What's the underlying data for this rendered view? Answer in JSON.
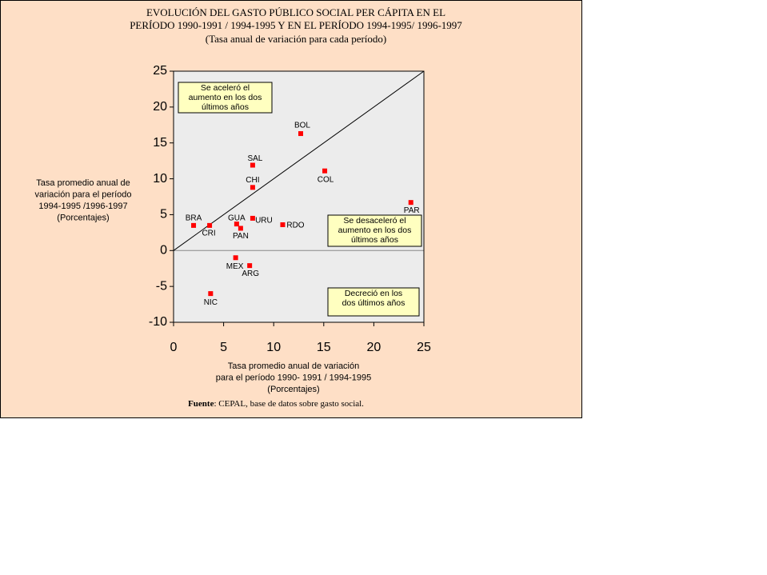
{
  "chart_data": {
    "type": "scatter",
    "title": [
      "EVOLUCIÓN DEL GASTO PÚBLICO SOCIAL PER CÁPITA EN EL",
      "PERÍODO 1990-1991 / 1994-1995 Y EN EL PERÍODO 1994-1995/ 1996-1997"
    ],
    "subtitle": "(Tasa anual de variación para cada período)",
    "x_label": [
      "Tasa promedio anual de variación",
      "para el período 1990- 1991 / 1994-1995",
      "(Porcentajes)"
    ],
    "y_label": [
      "Tasa promedio anual de",
      "variación para el período",
      "1994-1995 /1996-1997",
      "(Porcentajes)"
    ],
    "source_label": "Fuente",
    "source_text": ": CEPAL, base de datos sobre gasto social.",
    "labels": [
      "BOL",
      "SAL",
      "CHI",
      "COL",
      "PAR",
      "BRA",
      "CRI",
      "GUA",
      "PAN",
      "URU",
      "RDO",
      "MEX",
      "ARG",
      "NIC"
    ],
    "x": [
      12.7,
      7.9,
      7.9,
      15.1,
      23.7,
      2.0,
      3.6,
      6.3,
      6.7,
      7.9,
      10.9,
      6.2,
      7.6,
      3.7
    ],
    "values": [
      16.3,
      11.9,
      8.8,
      11.1,
      6.7,
      3.5,
      3.5,
      3.7,
      3.1,
      4.5,
      3.6,
      -1.0,
      -2.1,
      -6.0
    ],
    "color": "#ff0000",
    "xlim": [
      0,
      25
    ],
    "xticks": [
      0,
      5,
      10,
      15,
      20,
      25
    ],
    "ylim": [
      -10,
      25
    ],
    "yticks": [
      -10,
      -5,
      0,
      5,
      10,
      15,
      20,
      25
    ],
    "annotations": [
      [
        "Se aceleró el",
        "aumento en los dos",
        "últimos años"
      ],
      [
        "Se desaceleró el",
        "aumento en los dos",
        "últimos años"
      ],
      [
        "Decreció en los",
        "dos últimos años"
      ]
    ]
  }
}
